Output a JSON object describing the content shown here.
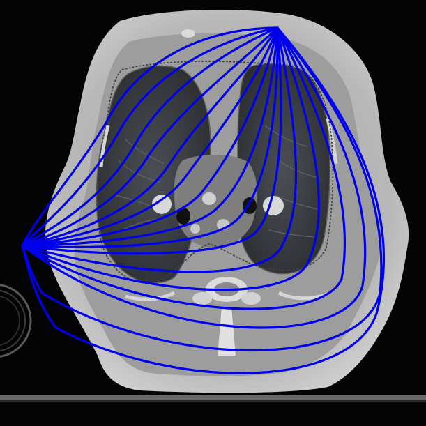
{
  "image": {
    "description_type": "axial-ct-slice-with-field-lines",
    "background_color": "#050505",
    "body_outer_color": "#b9b9b9",
    "body_inner_color": "#9a9a9a",
    "lung_color": "#3a3d42",
    "mediastinum_color": "#7f7f7f",
    "bone_color": "#e6e6e6",
    "table_color": "#6e6e6e",
    "contour_line_color": "#404040",
    "field_line_color": "#0000ee",
    "field_line_count": 16
  }
}
